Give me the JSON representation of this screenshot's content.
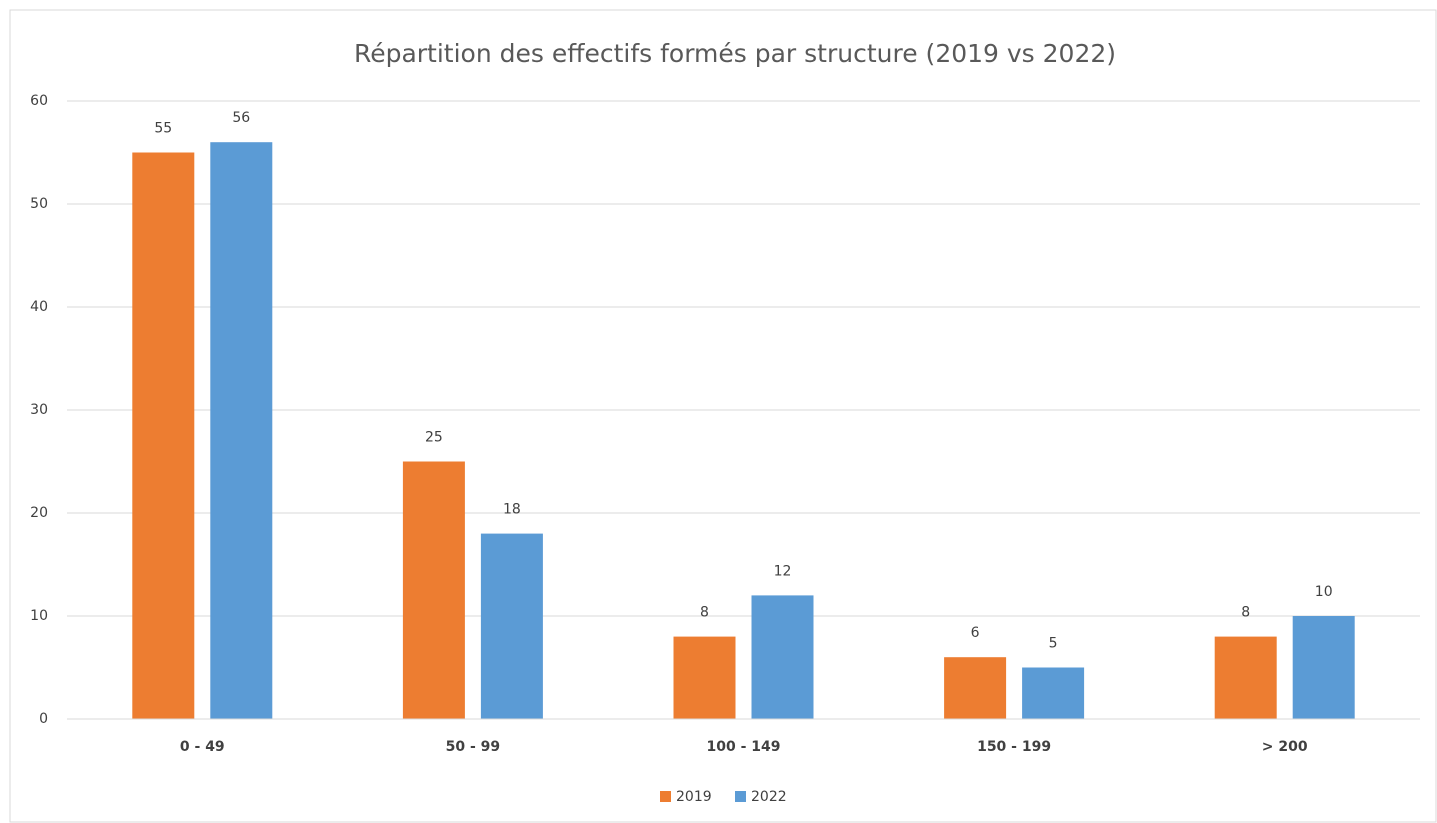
{
  "chart_data": {
    "type": "bar",
    "title": "Répartition des effectifs formés par structure (2019 vs 2022)",
    "categories": [
      "0 - 49",
      "50 - 99",
      "100 - 149",
      "150 - 199",
      "> 200"
    ],
    "series": [
      {
        "name": "2019",
        "color": "#ed7d31",
        "values": [
          55,
          25,
          8,
          6,
          8
        ]
      },
      {
        "name": "2022",
        "color": "#5b9bd5",
        "values": [
          56,
          18,
          12,
          5,
          10
        ]
      }
    ],
    "ylim": [
      0,
      60
    ],
    "yticks": [
      0,
      10,
      20,
      30,
      40,
      50,
      60
    ],
    "grid": true,
    "legend": "bottom"
  }
}
